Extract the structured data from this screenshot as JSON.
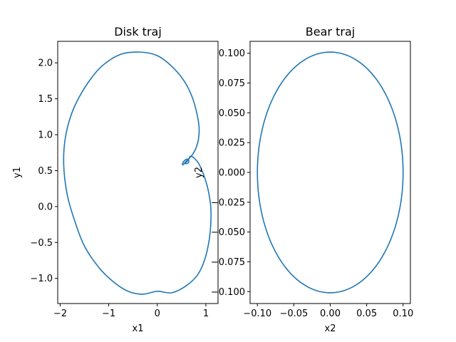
{
  "chart_data": [
    {
      "type": "line",
      "title": "Disk traj",
      "xlabel": "x1",
      "ylabel": "y1",
      "xlim": [
        -2.05,
        1.25
      ],
      "ylim": [
        -1.35,
        2.3
      ],
      "xticks": [
        -2,
        -1,
        0,
        1
      ],
      "xtick_labels": [
        "−2",
        "−1",
        "0",
        "1"
      ],
      "yticks": [
        -1.0,
        -0.5,
        0.0,
        0.5,
        1.0,
        1.5,
        2.0
      ],
      "ytick_labels": [
        "−1.0",
        "−0.5",
        "0.0",
        "0.5",
        "1.0",
        "1.5",
        "2.0"
      ],
      "grid": false,
      "series": [
        {
          "color": "#1f77b4",
          "x": [
            0.55,
            0.6,
            0.65,
            0.68,
            0.75,
            0.85,
            0.95,
            1.04,
            1.1,
            1.1,
            1.06,
            0.97,
            0.83,
            0.6,
            0.3,
            0.0,
            -0.3,
            -0.6,
            -0.9,
            -1.2,
            -1.5,
            -1.7,
            -1.85,
            -1.92,
            -1.92,
            -1.85,
            -1.7,
            -1.45,
            -1.15,
            -0.75,
            -0.35,
            0.0,
            0.3,
            0.55,
            0.72,
            0.82,
            0.86,
            0.85,
            0.8,
            0.72,
            0.64,
            0.58,
            0.53,
            0.52,
            0.56,
            0.62,
            0.65,
            0.62,
            0.55
          ],
          "y": [
            0.6,
            0.62,
            0.66,
            0.7,
            0.68,
            0.6,
            0.45,
            0.25,
            0.0,
            -0.25,
            -0.5,
            -0.75,
            -0.95,
            -1.1,
            -1.2,
            -1.18,
            -1.22,
            -1.18,
            -1.05,
            -0.85,
            -0.55,
            -0.2,
            0.15,
            0.5,
            0.8,
            1.1,
            1.4,
            1.7,
            1.95,
            2.12,
            2.15,
            2.1,
            1.95,
            1.75,
            1.52,
            1.28,
            1.1,
            0.95,
            0.82,
            0.72,
            0.66,
            0.62,
            0.58,
            0.6,
            0.64,
            0.66,
            0.63,
            0.6,
            0.6
          ]
        }
      ]
    },
    {
      "type": "line",
      "title": "Bear traj",
      "xlabel": "x2",
      "ylabel": "y2",
      "xlim": [
        -0.11,
        0.11
      ],
      "ylim": [
        -0.11,
        0.11
      ],
      "xticks": [
        -0.1,
        -0.05,
        0.0,
        0.05,
        0.1
      ],
      "xtick_labels": [
        "−0.10",
        "−0.05",
        "0.00",
        "0.05",
        "0.10"
      ],
      "yticks": [
        -0.1,
        -0.075,
        -0.05,
        -0.025,
        0.0,
        0.025,
        0.05,
        0.075,
        0.1
      ],
      "ytick_labels": [
        "−0.100",
        "−0.075",
        "−0.050",
        "−0.025",
        "0.000",
        "0.025",
        "0.050",
        "0.075",
        "0.100"
      ],
      "grid": false,
      "series": [
        {
          "color": "#1f77b4",
          "shape": "ellipse",
          "center": [
            0.0,
            0.0
          ],
          "radius_x": 0.1,
          "radius_y": 0.101
        }
      ]
    }
  ]
}
